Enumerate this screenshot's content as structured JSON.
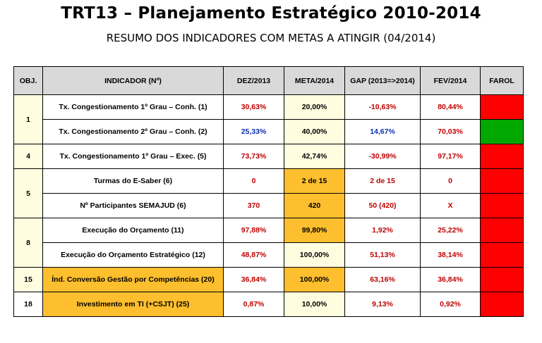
{
  "title": "TRT13 – Planejamento Estratégico 2010-2014",
  "subtitle": "RESUMO DOS INDICADORES COM METAS A ATINGIR (04/2014)",
  "headers": {
    "obj": "OBJ.",
    "indicador": "INDICADOR (Nº)",
    "dez": "DEZ/2013",
    "meta": "META/2014",
    "gap": "GAP (2013=>2014)",
    "fev": "FEV/2014",
    "farol": "FAROL"
  },
  "rows": [
    {
      "obj": "1",
      "indicador": "Tx. Congestionamento 1º Grau – Conh. (1)",
      "dez": "30,63%",
      "meta": "20,00%",
      "gap": "-10,63%",
      "fev": "80,44%",
      "farol": "red"
    },
    {
      "obj": "",
      "indicador": "Tx. Congestionamento 2º Grau – Conh. (2)",
      "dez": "25,33%",
      "meta": "40,00%",
      "gap": "14,67%",
      "fev": "70,03%",
      "farol": "green"
    },
    {
      "obj": "4",
      "indicador": "Tx. Congestionamento 1º Grau – Exec. (5)",
      "dez": "73,73%",
      "meta": "42,74%",
      "gap": "-30,99%",
      "fev": "97,17%",
      "farol": "red"
    },
    {
      "obj": "5",
      "indicador": "Turmas do E-Saber (6)",
      "dez": "0",
      "meta": "2 de 15",
      "gap": "2 de 15",
      "fev": "0",
      "farol": "red"
    },
    {
      "obj": "",
      "indicador": "Nº Participantes SEMAJUD (6)",
      "dez": "370",
      "meta": "420",
      "gap": "50 (420)",
      "fev": "X",
      "farol": "red"
    },
    {
      "obj": "8",
      "indicador": "Execução do Orçamento (11)",
      "dez": "97,88%",
      "meta": "99,80%",
      "gap": "1,92%",
      "fev": "25,22%",
      "farol": "red"
    },
    {
      "obj": "",
      "indicador": "Execução do Orçamento Estratégico (12)",
      "dez": "48,87%",
      "meta": "100,00%",
      "gap": "51,13%",
      "fev": "38,14%",
      "farol": "red"
    },
    {
      "obj": "15",
      "indicador": "Índ. Conversão Gestão por Competências (20)",
      "dez": "36,84%",
      "meta": "100,00%",
      "gap": "63,16%",
      "fev": "36,84%",
      "farol": "red"
    },
    {
      "obj": "18",
      "indicador": "Investimento em TI (+CSJT) (25)",
      "dez": "0,87%",
      "meta": "10,00%",
      "gap": "9,13%",
      "fev": "0,92%",
      "farol": "red"
    }
  ],
  "colors": {
    "farol_red": "#ff0000",
    "farol_green": "#00a800",
    "highlight": "#fdbf2d",
    "light_yellow": "#fffde0",
    "header_gray": "#d9d9d9"
  }
}
